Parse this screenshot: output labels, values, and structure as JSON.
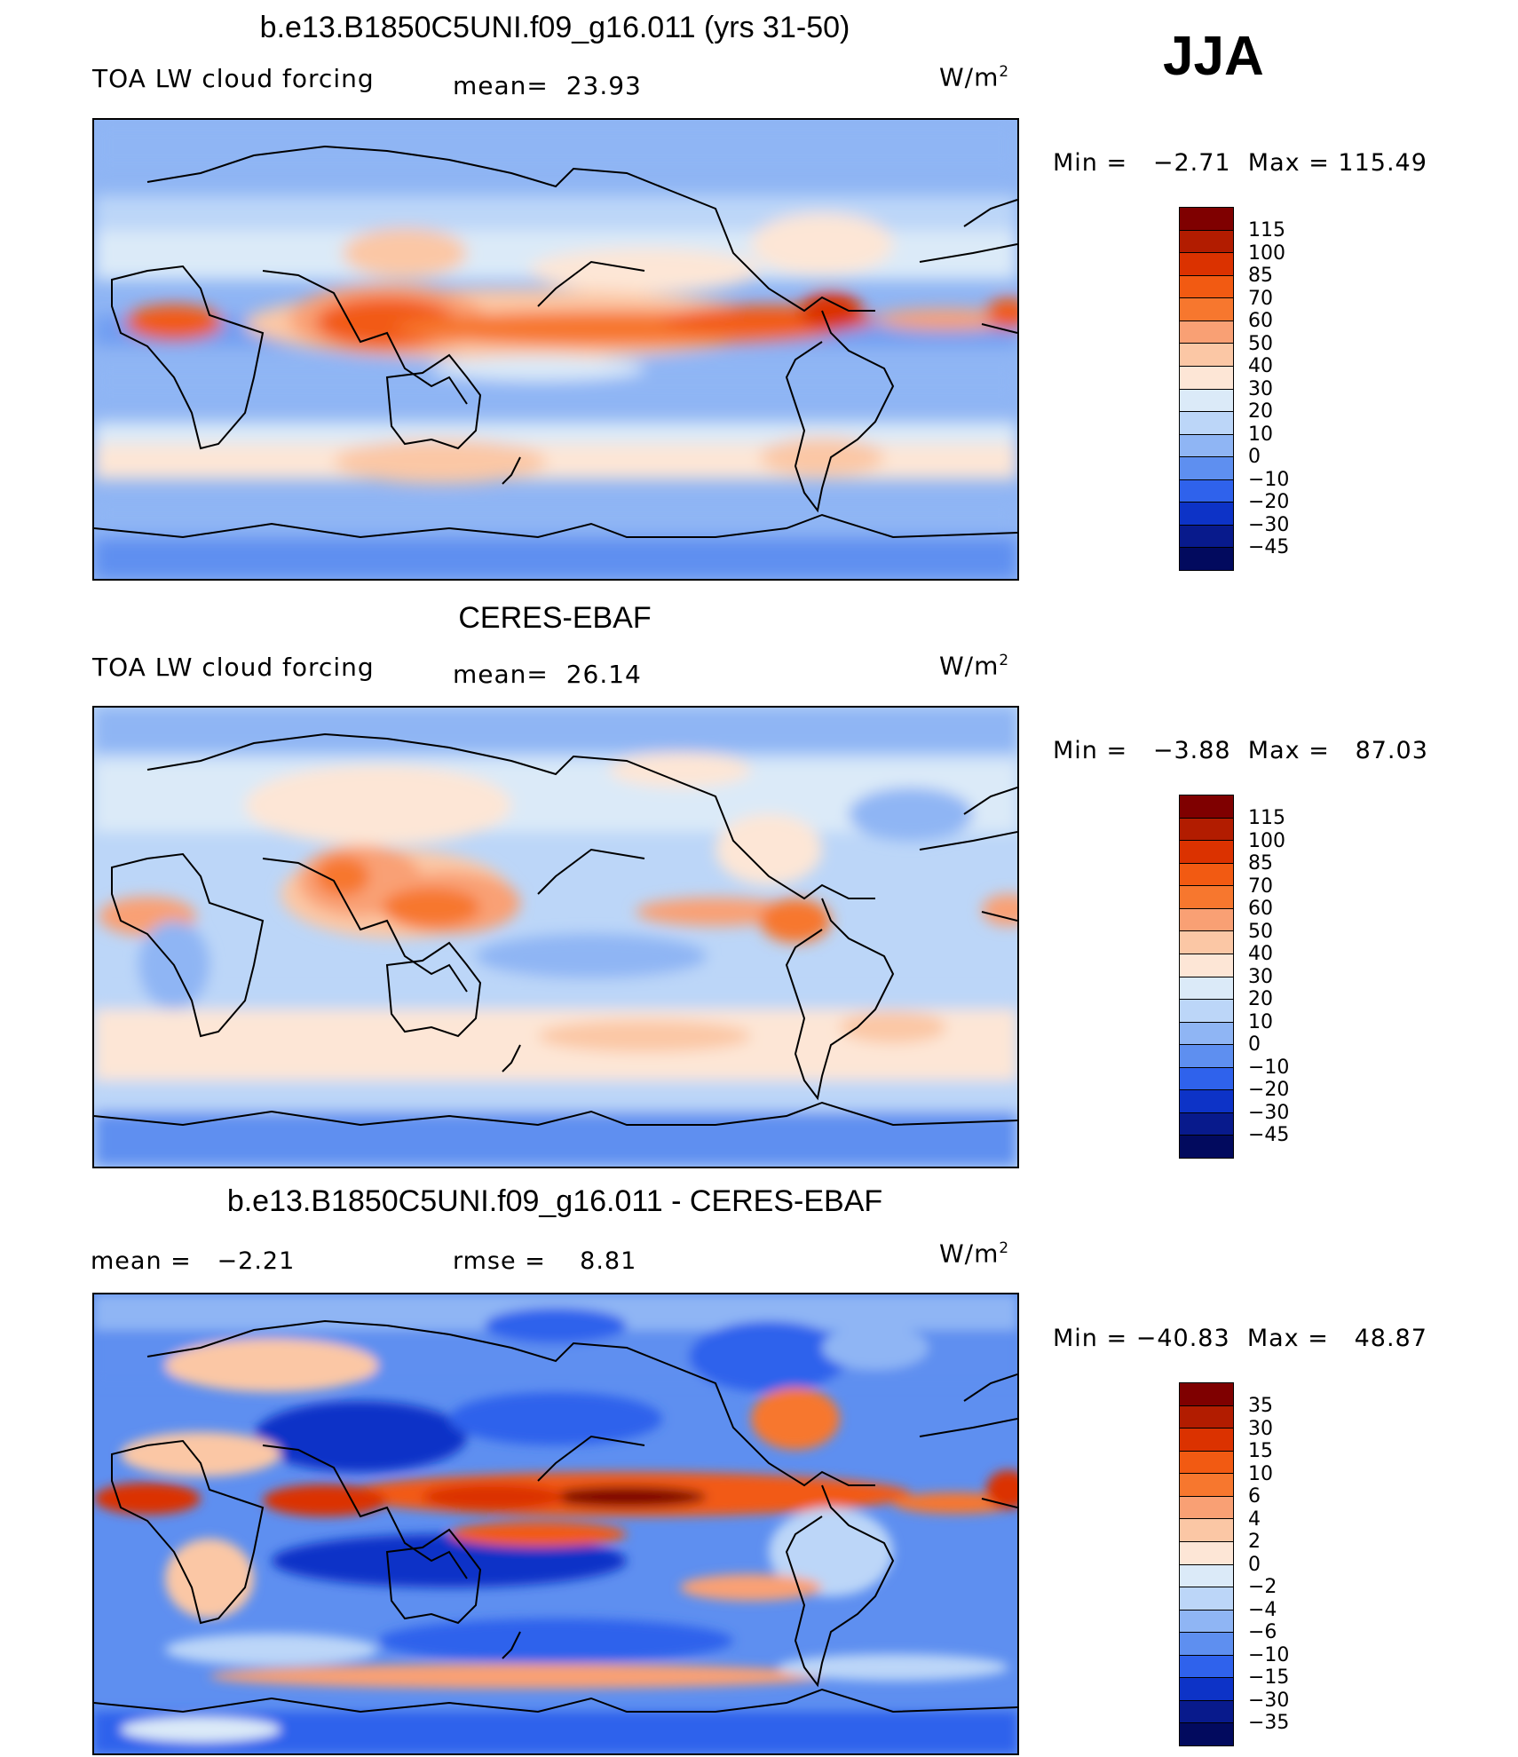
{
  "season": "JJA",
  "unit_label": "W/m",
  "unit_exp": "2",
  "panel1": {
    "title": "b.e13.B1850C5UNI.f09_g16.011 (yrs 31-50)",
    "var": "TOA LW cloud forcing",
    "mean_label": "mean=",
    "mean": "23.93",
    "min_label": "Min  =",
    "min": "−2.71",
    "max_label": "Max  =",
    "max": "115.49",
    "levels": [
      "115",
      "100",
      "85",
      "70",
      "60",
      "50",
      "40",
      "30",
      "20",
      "10",
      "0",
      "−10",
      "−20",
      "−30",
      "−45"
    ]
  },
  "panel2": {
    "title": "CERES-EBAF",
    "var": "TOA LW cloud forcing",
    "mean_label": "mean=",
    "mean": "26.14",
    "min_label": "Min  =",
    "min": "−3.88",
    "max_label": "Max  =",
    "max": "87.03",
    "levels": [
      "115",
      "100",
      "85",
      "70",
      "60",
      "50",
      "40",
      "30",
      "20",
      "10",
      "0",
      "−10",
      "−20",
      "−30",
      "−45"
    ]
  },
  "panel3": {
    "title": "b.e13.B1850C5UNI.f09_g16.011 - CERES-EBAF",
    "mean_label": "mean  =",
    "mean": "−2.21",
    "rmse_label": "rmse  =",
    "rmse": "8.81",
    "min_label": "Min  =",
    "min": "−40.83",
    "max_label": "Max  =",
    "max": "48.87",
    "levels": [
      "35",
      "30",
      "15",
      "10",
      "6",
      "4",
      "2",
      "0",
      "−2",
      "−4",
      "−6",
      "−10",
      "−15",
      "−30",
      "−35"
    ]
  },
  "colors": {
    "colorbar": [
      "#7f0000",
      "#b21c00",
      "#db3200",
      "#f25a12",
      "#f7772e",
      "#f9a074",
      "#fbc7a5",
      "#fde6d6",
      "#dbeaf8",
      "#bcd6f8",
      "#8fb5f4",
      "#5e8ff0",
      "#2f62ec",
      "#0d33c7",
      "#081a8c",
      "#020a5e"
    ]
  }
}
